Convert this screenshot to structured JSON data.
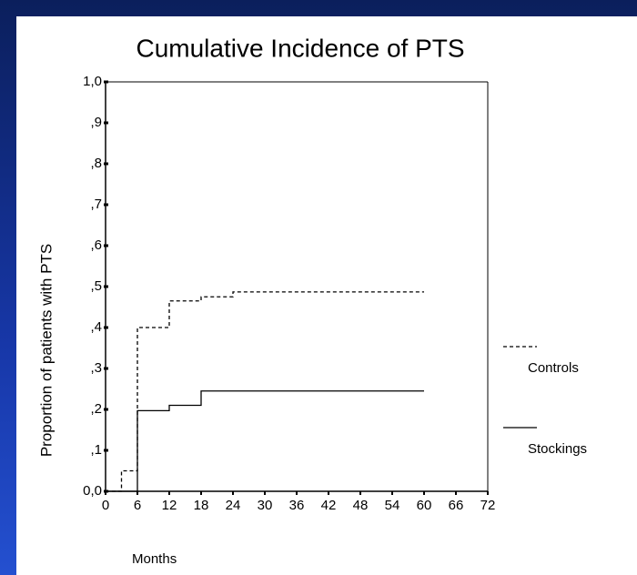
{
  "chart_data": {
    "type": "line",
    "title": "Cumulative Incidence of PTS",
    "x_label": "Months",
    "y_label": "Proportion of patients with PTS",
    "step": true,
    "xlim": [
      0,
      72
    ],
    "xticks": [
      0,
      6,
      12,
      18,
      24,
      30,
      36,
      42,
      48,
      54,
      60,
      66,
      72
    ],
    "ylim": [
      0,
      1
    ],
    "yticks": [
      {
        "value": 0,
        "label": "0,0"
      },
      {
        "value": 0.1,
        "label": ",1"
      },
      {
        "value": 0.2,
        "label": ",2"
      },
      {
        "value": 0.3,
        "label": ",3"
      },
      {
        "value": 0.4,
        "label": ",4"
      },
      {
        "value": 0.5,
        "label": ",5"
      },
      {
        "value": 0.6,
        "label": ",6"
      },
      {
        "value": 0.7,
        "label": ",7"
      },
      {
        "value": 0.8,
        "label": ",8"
      },
      {
        "value": 0.9,
        "label": ",9"
      },
      {
        "value": 1,
        "label": "1,0"
      }
    ],
    "series": [
      {
        "name": "Controls",
        "color": "#000000",
        "style": "dashed",
        "x": [
          0,
          3,
          6,
          12,
          18,
          24,
          60
        ],
        "values": [
          0,
          0.05,
          0.4,
          0.465,
          0.475,
          0.487,
          0.487
        ]
      },
      {
        "name": "Stockings",
        "color": "#000000",
        "style": "solid",
        "x": [
          0,
          6,
          12,
          18,
          60
        ],
        "values": [
          0,
          0.197,
          0.21,
          0.245,
          0.245
        ]
      }
    ]
  }
}
